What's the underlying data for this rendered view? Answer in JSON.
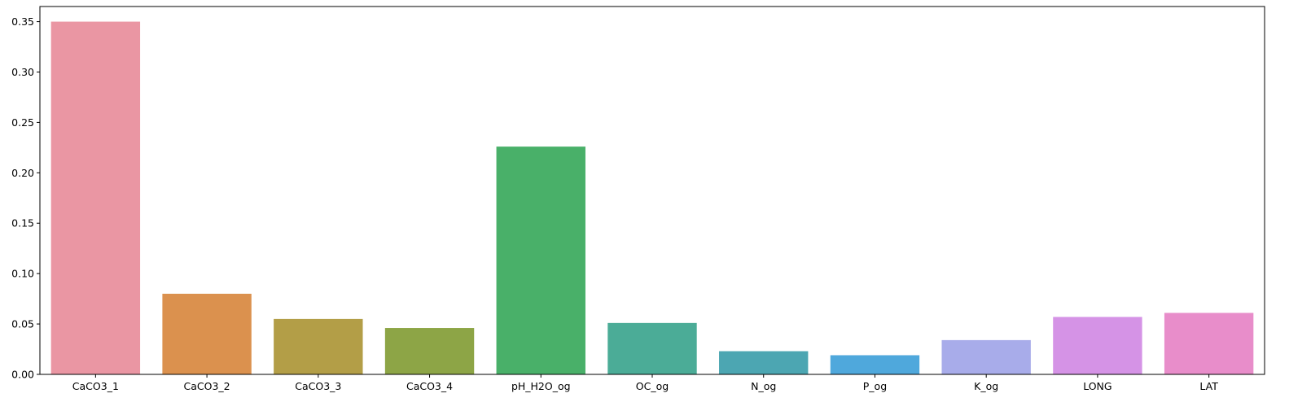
{
  "chart_data": {
    "type": "bar",
    "title": "",
    "xlabel": "",
    "ylabel": "",
    "categories": [
      "CaCO3_1",
      "CaCO3_2",
      "CaCO3_3",
      "CaCO3_4",
      "pH_H2O_og",
      "OC_og",
      "N_og",
      "P_og",
      "K_og",
      "LONG",
      "LAT"
    ],
    "values": [
      0.35,
      0.08,
      0.055,
      0.046,
      0.226,
      0.051,
      0.023,
      0.019,
      0.034,
      0.057,
      0.061
    ],
    "colors": [
      "#EA96A3",
      "#DB914E",
      "#B39E47",
      "#8DA546",
      "#49B069",
      "#4BAC97",
      "#4CA6B2",
      "#4FA8DC",
      "#A8ACEA",
      "#D593E6",
      "#E88DCA"
    ],
    "ylim": [
      0,
      0.365
    ],
    "yticks": [
      0.0,
      0.05,
      0.1,
      0.15,
      0.2,
      0.25,
      0.3,
      0.35
    ],
    "ytick_labels": [
      "0.00",
      "0.05",
      "0.10",
      "0.15",
      "0.20",
      "0.25",
      "0.30",
      "0.35"
    ],
    "grid": false,
    "legend": "none"
  }
}
